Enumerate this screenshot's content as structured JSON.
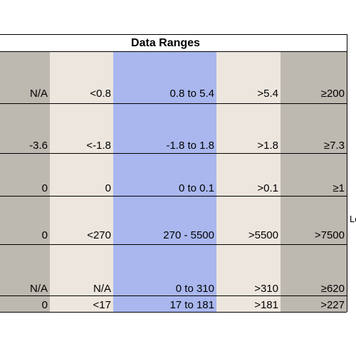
{
  "title": "Data Ranges",
  "side_label": "Le",
  "rows": [
    [
      "N/A",
      "<0.8",
      "0.8 to 5.4",
      ">5.4",
      "≥200"
    ],
    [
      "-3.6",
      "<-1.8",
      "-1.8 to 1.8",
      ">1.8",
      "≥7.3"
    ],
    [
      "0",
      "0",
      "0 to 0.1",
      ">0.1",
      "≥1"
    ],
    [
      "0",
      "<270",
      "270 - 5500",
      ">5500",
      ">7500"
    ],
    [
      "N/A",
      "N/A",
      "0 to 310",
      ">310",
      "≥620"
    ],
    [
      "0",
      "<17",
      "17 to 181",
      ">181",
      ">227"
    ]
  ],
  "colors": {
    "gray": "#bdb8b0",
    "beige": "#ece6de",
    "blue": "#a9b7ee"
  }
}
